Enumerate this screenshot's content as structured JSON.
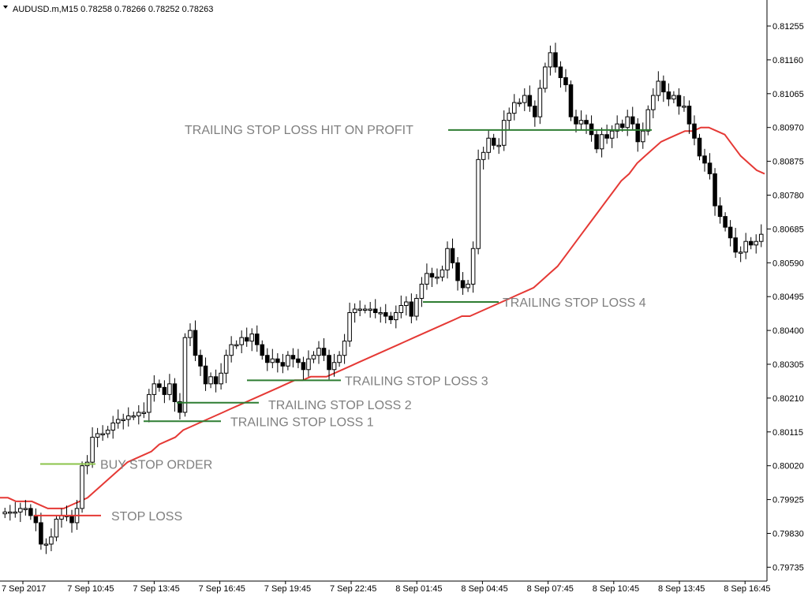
{
  "window": {
    "header_text": "AUDUSD.m,M15  0.78258 0.78266 0.78252 0.78263"
  },
  "chart_data": {
    "type": "candlestick",
    "symbol": "AUDUSD.m",
    "timeframe": "M15",
    "ohlc_header": {
      "open": 0.78258,
      "high": 0.78266,
      "low": 0.78252,
      "close": 0.78263
    },
    "ylim": [
      0.797,
      0.8133
    ],
    "y_ticks": [
      "0.81255",
      "0.81160",
      "0.81065",
      "0.80970",
      "0.80875",
      "0.80780",
      "0.80685",
      "0.80590",
      "0.80495",
      "0.80400",
      "0.80305",
      "0.80210",
      "0.80115",
      "0.80020",
      "0.79925",
      "0.79830",
      "0.79735"
    ],
    "x_ticks": [
      "7 Sep 2017",
      "7 Sep 10:45",
      "7 Sep 13:45",
      "7 Sep 16:45",
      "7 Sep 19:45",
      "7 Sep 22:45",
      "8 Sep 01:45",
      "8 Sep 04:45",
      "8 Sep 07:45",
      "8 Sep 10:45",
      "8 Sep 13:45",
      "8 Sep 16:45"
    ],
    "candle_closes": [
      0.7989,
      0.7989,
      0.7989,
      0.799,
      0.799,
      0.7988,
      0.7986,
      0.798,
      0.798,
      0.7982,
      0.7987,
      0.7988,
      0.7988,
      0.7986,
      0.799,
      0.8002,
      0.8003,
      0.801,
      0.8011,
      0.8011,
      0.8012,
      0.8014,
      0.8015,
      0.8015,
      0.8016,
      0.8016,
      0.8017,
      0.8017,
      0.8022,
      0.8025,
      0.8024,
      0.8022,
      0.8025,
      0.802,
      0.8017,
      0.8038,
      0.804,
      0.8033,
      0.803,
      0.8025,
      0.8027,
      0.8025,
      0.8028,
      0.8033,
      0.8036,
      0.8036,
      0.8038,
      0.8037,
      0.8039,
      0.8036,
      0.8033,
      0.8031,
      0.8032,
      0.8031,
      0.803,
      0.8033,
      0.8032,
      0.8031,
      0.8029,
      0.8032,
      0.8033,
      0.8035,
      0.8033,
      0.8029,
      0.8031,
      0.8033,
      0.8037,
      0.8045,
      0.8046,
      0.8046,
      0.8046,
      0.8046,
      0.8045,
      0.8045,
      0.8044,
      0.8043,
      0.8045,
      0.8047,
      0.8048,
      0.8044,
      0.8049,
      0.8053,
      0.8056,
      0.8055,
      0.8055,
      0.8057,
      0.8063,
      0.8059,
      0.8054,
      0.8052,
      0.8053,
      0.8063,
      0.8088,
      0.809,
      0.8094,
      0.8092,
      0.8092,
      0.8099,
      0.8101,
      0.8104,
      0.8104,
      0.8106,
      0.8103,
      0.81,
      0.8108,
      0.8114,
      0.8118,
      0.8114,
      0.8111,
      0.8109,
      0.81,
      0.8098,
      0.8099,
      0.8098,
      0.8095,
      0.8091,
      0.8095,
      0.8094,
      0.8096,
      0.8098,
      0.8097,
      0.81,
      0.8098,
      0.8093,
      0.8096,
      0.8102,
      0.8106,
      0.811,
      0.8107,
      0.8105,
      0.8106,
      0.8103,
      0.8103,
      0.8098,
      0.8094,
      0.8089,
      0.8087,
      0.8084,
      0.8075,
      0.8072,
      0.8069,
      0.8066,
      0.8062,
      0.8062,
      0.8065,
      0.8064,
      0.8065,
      0.8067
    ],
    "ema": [
      0.7993,
      0.7993,
      0.7992,
      0.7992,
      0.7992,
      0.7991,
      0.799,
      0.799,
      0.799,
      0.7991,
      0.7992,
      0.7993,
      0.7995,
      0.7997,
      0.7999,
      0.8001,
      0.8003,
      0.8004,
      0.8005,
      0.8006,
      0.8008,
      0.8009,
      0.801,
      0.8012,
      0.8013,
      0.8014,
      0.8015,
      0.8016,
      0.8017,
      0.8018,
      0.8019,
      0.802,
      0.8021,
      0.8022,
      0.8023,
      0.8024,
      0.8025,
      0.8026,
      0.8026,
      0.8027,
      0.8027,
      0.8027,
      0.8028,
      0.8029,
      0.803,
      0.8031,
      0.8032,
      0.8033,
      0.8034,
      0.8035,
      0.8036,
      0.8037,
      0.8038,
      0.8039,
      0.804,
      0.8041,
      0.8042,
      0.8043,
      0.8044,
      0.8044,
      0.8045,
      0.8046,
      0.8047,
      0.8048,
      0.8049,
      0.805,
      0.8051,
      0.8052,
      0.8054,
      0.8056,
      0.8058,
      0.8061,
      0.8064,
      0.8067,
      0.807,
      0.8073,
      0.8076,
      0.8079,
      0.8082,
      0.8084,
      0.8087,
      0.8089,
      0.8091,
      0.8093,
      0.8094,
      0.8095,
      0.8096,
      0.8096,
      0.8097,
      0.8097,
      0.8096,
      0.8095,
      0.8092,
      0.8089,
      0.8087,
      0.8085,
      0.8084
    ],
    "horizontal_levels": [
      {
        "label": "TRAILING STOP LOSS HIT ON PROFIT",
        "price": 0.80963,
        "color": "#2e7d32"
      },
      {
        "label": "TRAILING STOP LOSS 4",
        "price": 0.8048,
        "color": "#2e7d32"
      },
      {
        "label": "TRAILING STOP LOSS 3",
        "price": 0.8026,
        "color": "#2e7d32"
      },
      {
        "label": "TRAILING STOP LOSS 2",
        "price": 0.80197,
        "color": "#2e7d32"
      },
      {
        "label": "TRAILING STOP LOSS 1",
        "price": 0.80145,
        "color": "#2e7d32"
      },
      {
        "label": "BUY STOP ORDER",
        "price": 0.80025,
        "color": "#8bc34a"
      },
      {
        "label": "STOP LOSS",
        "price": 0.7988,
        "color": "#e53935"
      }
    ],
    "colors": {
      "ema": "#e53935",
      "bull_candle": "#ffffff",
      "bear_candle": "#000000",
      "axis": "#000000",
      "annotation_text": "#808080"
    }
  }
}
